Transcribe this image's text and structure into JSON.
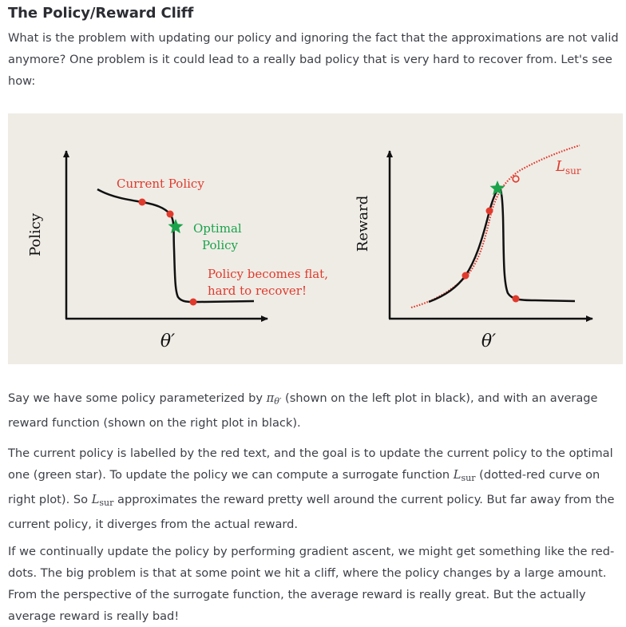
{
  "title": "The Policy/Reward Cliff",
  "intro": "What is the problem with updating our policy and ignoring the fact that the approximations are not valid anymore? One problem is it could lead to a really bad policy that is very hard to recover from. Let's see how:",
  "figure": {
    "left_plot": {
      "ylabel": "Policy",
      "xlabel": "θ′",
      "label_current": "Current Policy",
      "label_optimal_1": "Optimal",
      "label_optimal_2": "Policy",
      "label_flat_1": "Policy becomes flat,",
      "label_flat_2": "hard to recover!"
    },
    "right_plot": {
      "ylabel": "Reward",
      "xlabel": "θ′",
      "lsur_L": "L",
      "lsur_sub": "sur"
    },
    "colors": {
      "curve": "#111111",
      "red": "#e03a2c",
      "green": "#1aa34a",
      "background": "#efece6"
    }
  },
  "para1": {
    "a": "Say we have some policy parameterized by ",
    "pi": "π",
    "pi_sub": "θ′",
    "b": " (shown on the left plot in black), and with an average reward function (shown on the right plot in black)."
  },
  "para2": {
    "a": "The current policy is labelled by the red text, and the goal is to update the current policy to the optimal one (green star). To update the policy we can compute a surrogate function ",
    "L1": "L",
    "L1_sub": "sur",
    "b": " (dotted-red curve on right plot). So ",
    "L2": "L",
    "L2_sub": "sur",
    "c": " approximates the reward pretty well around the current policy. But far away from the current policy, it diverges from the actual reward."
  },
  "para3": "If we continually update the policy by performing gradient ascent, we might get something like the red-dots. The big problem is that at some point we hit a cliff, where the policy changes by a large amount. From the perspective of the surrogate function, the average reward is really great. But the actually average reward is really bad!"
}
